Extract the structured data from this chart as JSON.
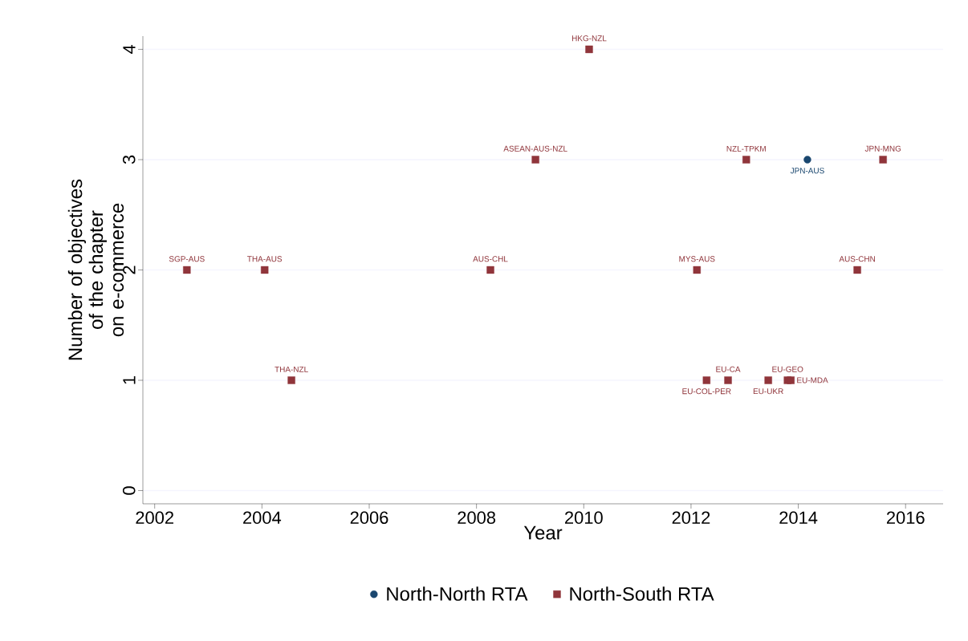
{
  "chart_data": {
    "type": "scatter",
    "xlabel": "Year",
    "ylabel": "Number of objectives of the chapter on e-commerce",
    "xlim": [
      2001.78,
      2016.7
    ],
    "ylim": [
      -0.12,
      4.12
    ],
    "xticks": [
      2002,
      2004,
      2006,
      2008,
      2010,
      2012,
      2014,
      2016
    ],
    "yticks": [
      0,
      1,
      2,
      3,
      4
    ],
    "grid": "y",
    "legend": "bottom",
    "series": [
      {
        "name": "North-North RTA",
        "color": "#1a476f",
        "marker": "circle",
        "x": [
          2014.17
        ],
        "values": [
          3
        ]
      },
      {
        "name": "North-South RTA",
        "color": "#90353b",
        "marker": "square",
        "x": [
          2002.6,
          2004.05,
          2004.55,
          2008.26,
          2009.1,
          2010.1,
          2012.11,
          2012.29,
          2012.69,
          2013.03,
          2013.44,
          2013.8,
          2013.86,
          2015.1,
          2015.58
        ],
        "values": [
          2,
          2,
          1,
          2,
          3,
          4,
          2,
          1,
          1,
          3,
          1,
          1,
          1,
          2,
          3
        ]
      }
    ],
    "annotations": [
      {
        "text": "JPN-AUS",
        "x": 2014.17,
        "y": 3
      },
      {
        "text": "SGP-AUS",
        "x": 2002.6,
        "y": 2
      },
      {
        "text": "THA-AUS",
        "x": 2004.05,
        "y": 2
      },
      {
        "text": "THA-NZL",
        "x": 2004.55,
        "y": 1
      },
      {
        "text": "AUS-CHL",
        "x": 2008.26,
        "y": 2
      },
      {
        "text": "ASEAN-AUS-NZL",
        "x": 2009.1,
        "y": 3
      },
      {
        "text": "HKG-NZL",
        "x": 2010.1,
        "y": 4
      },
      {
        "text": "MYS-AUS",
        "x": 2012.11,
        "y": 2
      },
      {
        "text": "EU-COL-PER",
        "x": 2012.29,
        "y": 1
      },
      {
        "text": "EU-CA",
        "x": 2012.69,
        "y": 1
      },
      {
        "text": "NZL-TPKM",
        "x": 2013.03,
        "y": 3
      },
      {
        "text": "EU-UKR",
        "x": 2013.44,
        "y": 1
      },
      {
        "text": "EU-GEO",
        "x": 2013.8,
        "y": 1
      },
      {
        "text": "EU-MDA",
        "x": 2013.86,
        "y": 1
      },
      {
        "text": "AUS-CHN",
        "x": 2015.1,
        "y": 2
      },
      {
        "text": "JPN-MNG",
        "x": 2015.58,
        "y": 3
      }
    ]
  }
}
